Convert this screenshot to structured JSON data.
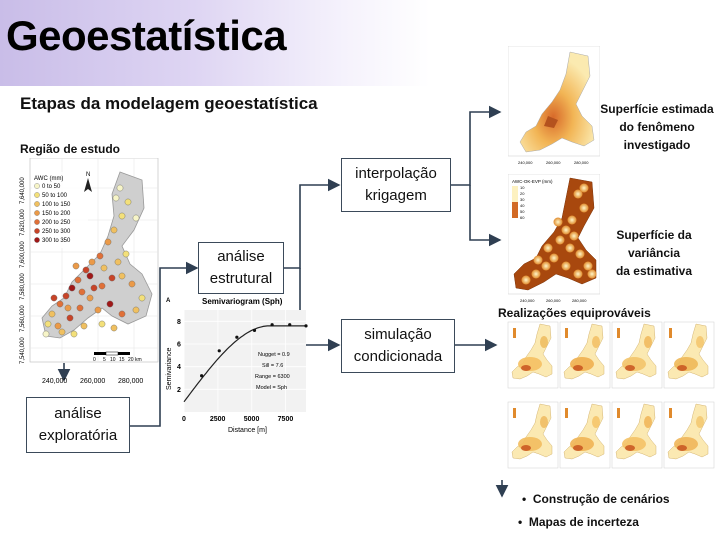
{
  "header": {
    "title": "Geoestatística",
    "subtitle": "Etapas da modelagem geoestatística"
  },
  "study_region": {
    "label": "Região de estudo",
    "legend_title": "AWC (mm)",
    "legend_items": [
      "0 to 50",
      "50 to 100",
      "100 to 150",
      "150 to 200",
      "200 to 250",
      "250 to 300",
      "300 to 350"
    ],
    "legend_colors": [
      "#f7f5c8",
      "#f3e07a",
      "#f0c060",
      "#eb9a48",
      "#e07038",
      "#c84428",
      "#a01818"
    ],
    "y_ticks": [
      "7,640,000",
      "7,620,000",
      "7,600,000",
      "7,580,000",
      "7,560,000",
      "7,540,000"
    ],
    "x_ticks": [
      "240,000",
      "260,000",
      "280,000"
    ],
    "scale_labels": [
      "0",
      "5",
      "10",
      "15",
      "20 km"
    ],
    "north": "N"
  },
  "steps": {
    "exploratory": [
      "análise",
      "exploratória"
    ],
    "structural": [
      "análise",
      "estrutural"
    ],
    "interpolation": [
      "interpolação",
      "krigagem"
    ],
    "simulation": [
      "simulação",
      "condicionada"
    ]
  },
  "variogram": {
    "panel_letter": "A",
    "title": "Semivariogram (Sph)",
    "xlabel": "Distance [m]",
    "ylabel": "Semivariance",
    "x_ticks": [
      "0",
      "2500",
      "5000",
      "7500"
    ],
    "y_ticks": [
      "2",
      "4",
      "6",
      "8"
    ],
    "params": [
      "Nugget =  0.9",
      "Sill =  7.6",
      "Range =  6300",
      "Model =  Sph"
    ],
    "chart_data": {
      "type": "scatter",
      "title": "Semivariogram (Sph)",
      "xlabel": "Distance [m]",
      "ylabel": "Semivariance",
      "xlim": [
        0,
        9000
      ],
      "ylim": [
        0,
        9
      ],
      "points": [
        [
          1300,
          3.2
        ],
        [
          2600,
          5.4
        ],
        [
          3900,
          6.6
        ],
        [
          5200,
          7.2
        ],
        [
          6500,
          7.7
        ],
        [
          7800,
          7.7
        ],
        [
          9000,
          7.6
        ]
      ],
      "model": {
        "nugget": 0.9,
        "sill": 7.6,
        "range": 6300,
        "type": "Sph"
      }
    }
  },
  "outputs": {
    "estimate_label": [
      "Superfície estimada",
      "do fenômeno",
      "investigado"
    ],
    "variance_label": [
      "Superfície da",
      "variância",
      "da estimativa"
    ],
    "variance_legend_title": "AWC-OK-EVP (mm)",
    "variance_legend_values": [
      "10",
      "20",
      "30",
      "40",
      "50",
      "60"
    ],
    "map_x_ticks": [
      "240,000",
      "260,000",
      "280,000"
    ],
    "realizations_title": "Realizações equiprováveis",
    "bullets": [
      "Construção de cenários",
      "Mapas de incerteza"
    ]
  }
}
